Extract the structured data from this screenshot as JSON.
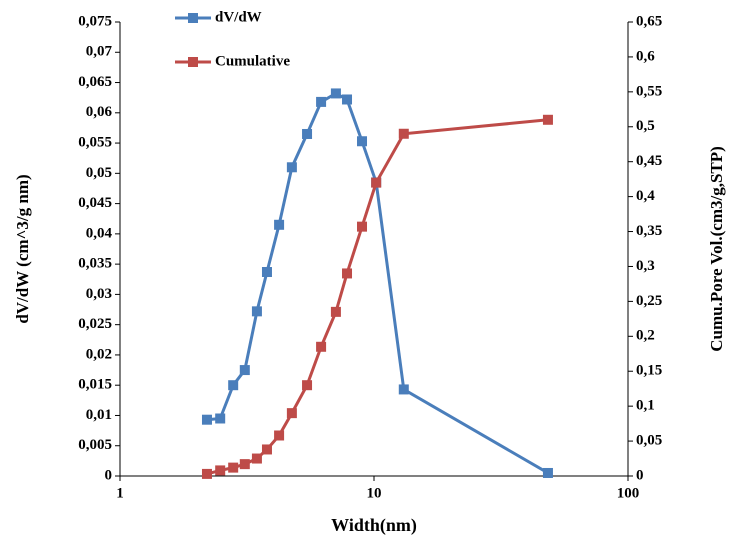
{
  "chart_data": {
    "type": "line",
    "xlabel": "Width(nm)",
    "ylabel": "dV/dW  (cm^3/g nm)",
    "y2label": "Cumu.Pore Vol.(cm3/g,STP)",
    "xlog": true,
    "legend": "top-left",
    "x": [
      2.2,
      2.48,
      2.79,
      3.1,
      3.46,
      3.79,
      4.23,
      4.75,
      5.45,
      6.19,
      7.08,
      7.83,
      8.97,
      10.2,
      13.1,
      48.4
    ],
    "series": [
      {
        "name": "dV/dW",
        "color": "#4a7ebb",
        "values": [
          0.0093,
          0.0095,
          0.015,
          0.0175,
          0.0272,
          0.0337,
          0.0415,
          0.051,
          0.0565,
          0.0618,
          0.0632,
          0.0622,
          0.0553,
          0.0485,
          0.0143,
          0.0005
        ]
      },
      {
        "name": "Cumulative",
        "color": "#be4b48",
        "axis": "y2",
        "values": [
          0.003,
          0.008,
          0.012,
          0.017,
          0.025,
          0.038,
          0.058,
          0.09,
          0.13,
          0.185,
          0.235,
          0.29,
          0.357,
          0.42,
          0.49,
          0.51
        ]
      }
    ],
    "xlim": [
      1,
      100
    ],
    "xticks": [
      1,
      10,
      100
    ],
    "ylim": [
      0,
      0.075
    ],
    "yticks": [
      0,
      {
        "value": 0.005,
        "label": "0,005"
      },
      {
        "value": 0.01,
        "label": "0,01"
      },
      {
        "value": 0.015,
        "label": "0,015"
      },
      {
        "value": 0.02,
        "label": "0,02"
      },
      {
        "value": 0.025,
        "label": "0,025"
      },
      {
        "value": 0.03,
        "label": "0,03"
      },
      {
        "value": 0.035,
        "label": "0,035"
      },
      {
        "value": 0.04,
        "label": "0,04"
      },
      {
        "value": 0.045,
        "label": "0,045"
      },
      {
        "value": 0.05,
        "label": "0,05"
      },
      {
        "value": 0.055,
        "label": "0,055"
      },
      {
        "value": 0.06,
        "label": "0,06"
      },
      {
        "value": 0.065,
        "label": "0,065"
      },
      {
        "value": 0.07,
        "label": "0,07"
      },
      {
        "value": 0.075,
        "label": "0,075"
      }
    ],
    "y2lim": [
      0,
      0.65
    ],
    "y2ticks": [
      0,
      {
        "value": 0.05,
        "label": "0,05"
      },
      {
        "value": 0.1,
        "label": "0,1"
      },
      {
        "value": 0.15,
        "label": "0,15"
      },
      {
        "value": 0.2,
        "label": "0,2"
      },
      {
        "value": 0.25,
        "label": "0,25"
      },
      {
        "value": 0.3,
        "label": "0,3"
      },
      {
        "value": 0.35,
        "label": "0,35"
      },
      {
        "value": 0.4,
        "label": "0,4"
      },
      {
        "value": 0.45,
        "label": "0,45"
      },
      {
        "value": 0.5,
        "label": "0,5"
      },
      {
        "value": 0.55,
        "label": "0,55"
      },
      {
        "value": 0.6,
        "label": "0,6"
      },
      {
        "value": 0.65,
        "label": "0,65"
      }
    ]
  }
}
